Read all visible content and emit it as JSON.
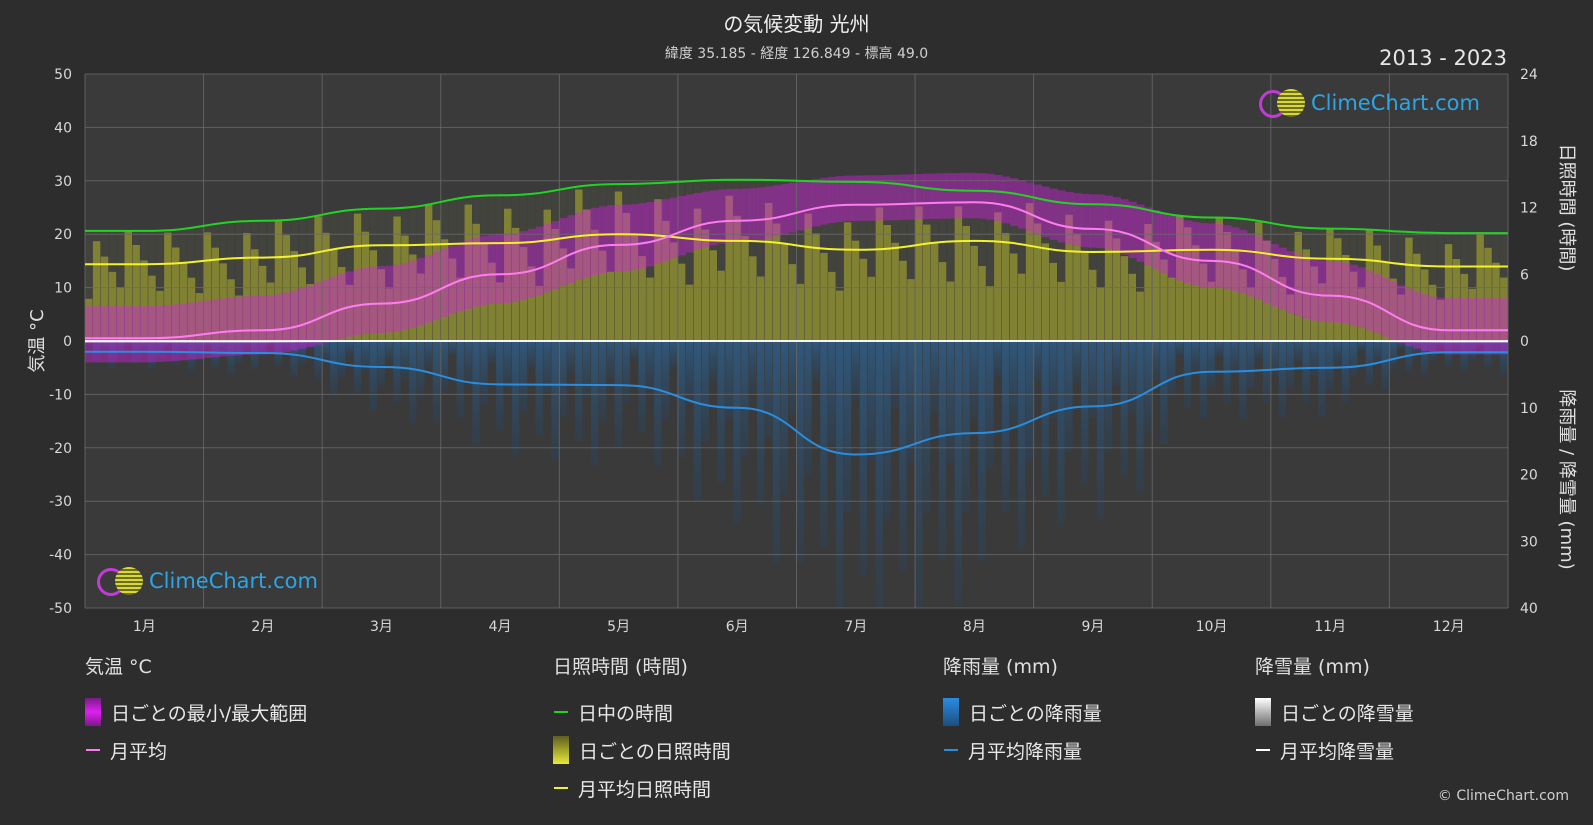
{
  "header": {
    "title": "の気候変動 光州",
    "subtitle": "緯度 35.185 - 経度 126.849 - 標高 49.0",
    "years": "2013 - 2023"
  },
  "logo_text": "ClimeChart.com",
  "copyright": "© ClimeChart.com",
  "legend": {
    "temp": {
      "head": "気温 °C",
      "range": "日ごとの最小/最大範囲",
      "avg": "月平均"
    },
    "sun": {
      "head": "日照時間 (時間)",
      "daylight": "日中の時間",
      "daily_sun": "日ごとの日照時間",
      "avg_sun": "月平均日照時間"
    },
    "rain": {
      "head": "降雨量 (mm)",
      "daily": "日ごとの降雨量",
      "avg": "月平均降雨量"
    },
    "snow": {
      "head": "降雪量 (mm)",
      "daily": "日ごとの降雪量",
      "avg": "月平均降雪量"
    }
  },
  "colors": {
    "background": "#2d2d2d",
    "plot_bg": "#3a3a3a",
    "temp_range": "#d61ee6",
    "temp_avg": "#ff7cf0",
    "daylight": "#22d422",
    "sunshine": "#b5b52e",
    "sunshine_avg": "#f2f22a",
    "rain": "#2a8ee0",
    "rain_avg": "#2a8ee0",
    "snow": "#ffffff"
  },
  "chart_data": {
    "type": "line",
    "categories": [
      "1月",
      "2月",
      "3月",
      "4月",
      "5月",
      "6月",
      "7月",
      "8月",
      "9月",
      "10月",
      "11月",
      "12月"
    ],
    "axes": {
      "left": {
        "label": "気温 °C",
        "range": [
          -50,
          50
        ],
        "ticks": [
          50,
          40,
          30,
          20,
          10,
          0,
          -10,
          -20,
          -30,
          -40,
          -50
        ]
      },
      "right_top": {
        "label": "日照時間 (時間)",
        "range": [
          0,
          24
        ],
        "ticks": [
          24,
          18,
          12,
          6,
          0
        ]
      },
      "right_bottom": {
        "label": "降雨量 / 降雪量 (mm)",
        "range": [
          0,
          40
        ],
        "ticks": [
          0,
          10,
          20,
          30,
          40
        ]
      }
    },
    "grid": true,
    "series": [
      {
        "name": "月平均",
        "axis": "left",
        "values": [
          0.5,
          2.0,
          7.0,
          12.5,
          18.0,
          22.5,
          25.5,
          26.0,
          21.0,
          15.0,
          8.5,
          2.0
        ]
      },
      {
        "name": "日中の時間",
        "axis": "right_top",
        "values": [
          9.9,
          10.8,
          11.9,
          13.1,
          14.1,
          14.5,
          14.3,
          13.5,
          12.3,
          11.1,
          10.1,
          9.7
        ]
      },
      {
        "name": "月平均日照時間",
        "axis": "right_top",
        "values": [
          6.9,
          7.5,
          8.6,
          8.8,
          9.6,
          9.0,
          8.2,
          9.0,
          8.0,
          8.2,
          7.4,
          6.7
        ]
      },
      {
        "name": "月平均降雨量",
        "axis": "right_bottom",
        "values": [
          1.6,
          1.8,
          3.9,
          6.5,
          6.6,
          10.0,
          17.0,
          13.8,
          9.8,
          4.6,
          4.0,
          1.7
        ]
      },
      {
        "name": "月平均降雪量",
        "axis": "right_bottom",
        "values": [
          0.1,
          0.1,
          0.0,
          0.0,
          0.0,
          0.0,
          0.0,
          0.0,
          0.0,
          0.0,
          0.0,
          0.1
        ]
      }
    ],
    "daily_temp_range": {
      "min": [
        -4.0,
        -2.5,
        1.5,
        7.0,
        13.0,
        18.5,
        22.5,
        23.0,
        17.5,
        10.0,
        3.5,
        -2.5
      ],
      "max": [
        6.5,
        8.5,
        14.0,
        20.0,
        25.5,
        28.5,
        31.0,
        31.5,
        27.5,
        22.0,
        15.0,
        8.0
      ]
    }
  }
}
